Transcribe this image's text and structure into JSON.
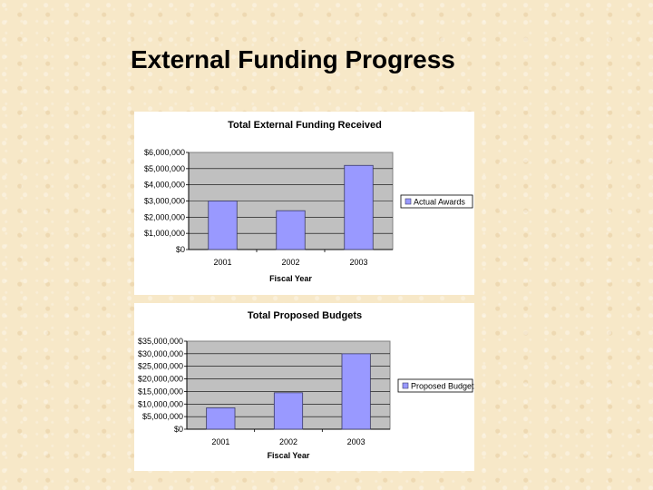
{
  "slide": {
    "title": "External Funding Progress"
  },
  "colors": {
    "bar": "#9999ff",
    "bar_stroke": "#3a3a66",
    "plot_bg": "#c0c0c0",
    "panel_bg": "#ffffff"
  },
  "chart_data": [
    {
      "type": "bar",
      "title": "Total External Funding Received",
      "xlabel": "Fiscal Year",
      "ylabel": "",
      "categories": [
        "2001",
        "2002",
        "2003"
      ],
      "series": [
        {
          "name": "Actual Awards",
          "values": [
            3000000,
            2400000,
            5200000
          ]
        }
      ],
      "ylim": [
        0,
        6000000
      ],
      "ytick_labels": [
        "$6,000,000",
        "$5,000,000",
        "$4,000,000",
        "$3,000,000",
        "$2,000,000",
        "$1,000,000",
        "$0"
      ],
      "grid": true,
      "legend": "right"
    },
    {
      "type": "bar",
      "title": "Total Proposed Budgets",
      "xlabel": "Fiscal Year",
      "ylabel": "",
      "categories": [
        "2001",
        "2002",
        "2003"
      ],
      "series": [
        {
          "name": "Proposed Budgets",
          "values": [
            8500000,
            14500000,
            30000000
          ]
        }
      ],
      "ylim": [
        0,
        35000000
      ],
      "ytick_labels": [
        "$35,000,000",
        "$30,000,000",
        "$25,000,000",
        "$20,000,000",
        "$15,000,000",
        "$10,000,000",
        "$5,000,000",
        "$0"
      ],
      "grid": true,
      "legend": "right"
    }
  ]
}
